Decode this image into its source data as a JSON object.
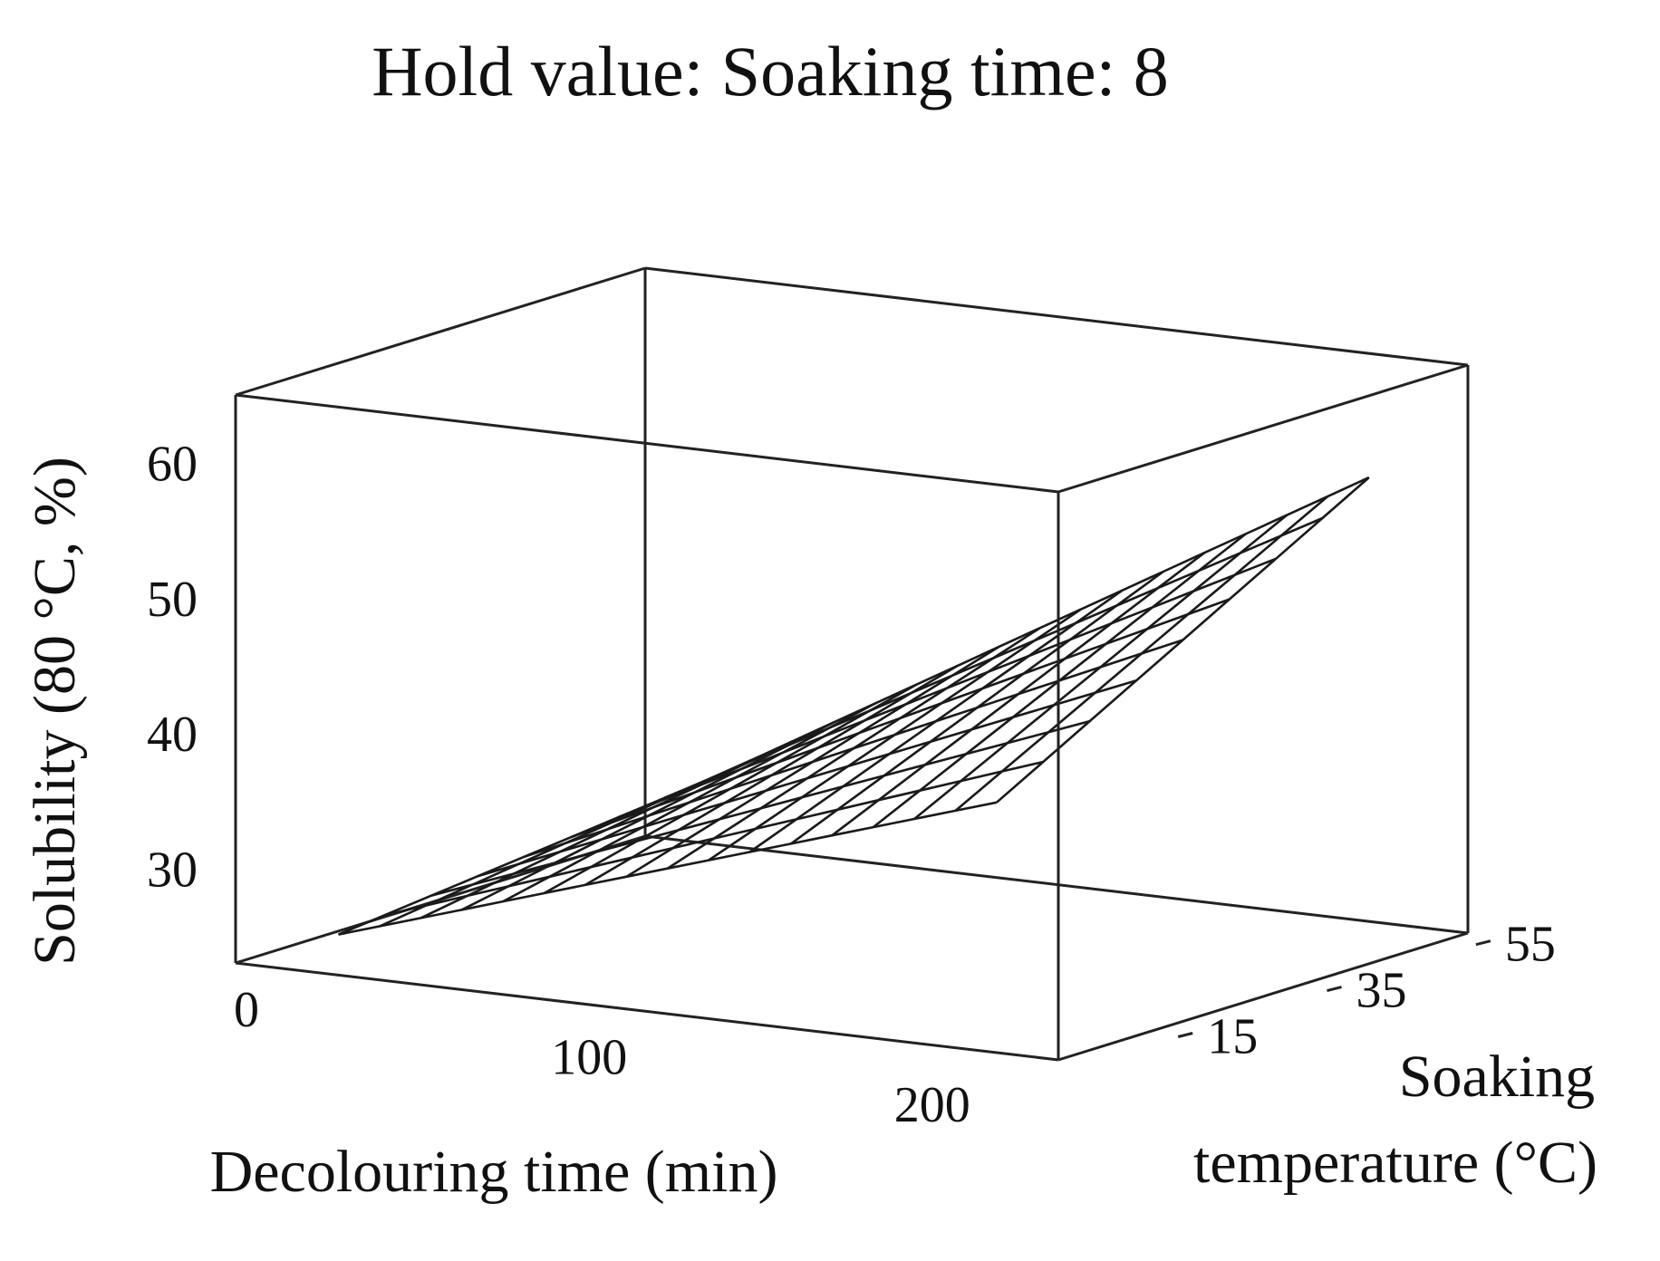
{
  "chart_data": {
    "type": "surface",
    "title": "Hold value: Soaking time: 8",
    "xlabel": "Decolouring time (min)",
    "ylabel_line1": "Soaking",
    "ylabel_line2": "temperature (°C)",
    "zlabel": "Solubility (80 °C, %)",
    "x_ticks": [
      "0",
      "100",
      "200"
    ],
    "y_ticks": [
      "15",
      "35",
      "55"
    ],
    "z_ticks": [
      "30",
      "40",
      "50",
      "60"
    ],
    "xlim": [
      0,
      240
    ],
    "ylim": [
      5,
      60
    ],
    "zlim": [
      23,
      65
    ],
    "grid_x": [
      30,
      42,
      54,
      66,
      78,
      90,
      102,
      114,
      126,
      138,
      150,
      162,
      174,
      186,
      198,
      210,
      222
    ],
    "grid_y": [
      5,
      11.25,
      17.5,
      23.75,
      30,
      36.25,
      42.5,
      48.75,
      55
    ],
    "grid": false,
    "legend": "none",
    "surface_description_corners": {
      "x30_y5": 26,
      "x30_y55": 29,
      "x222_y5": 41.5,
      "x222_y55": 57
    }
  }
}
